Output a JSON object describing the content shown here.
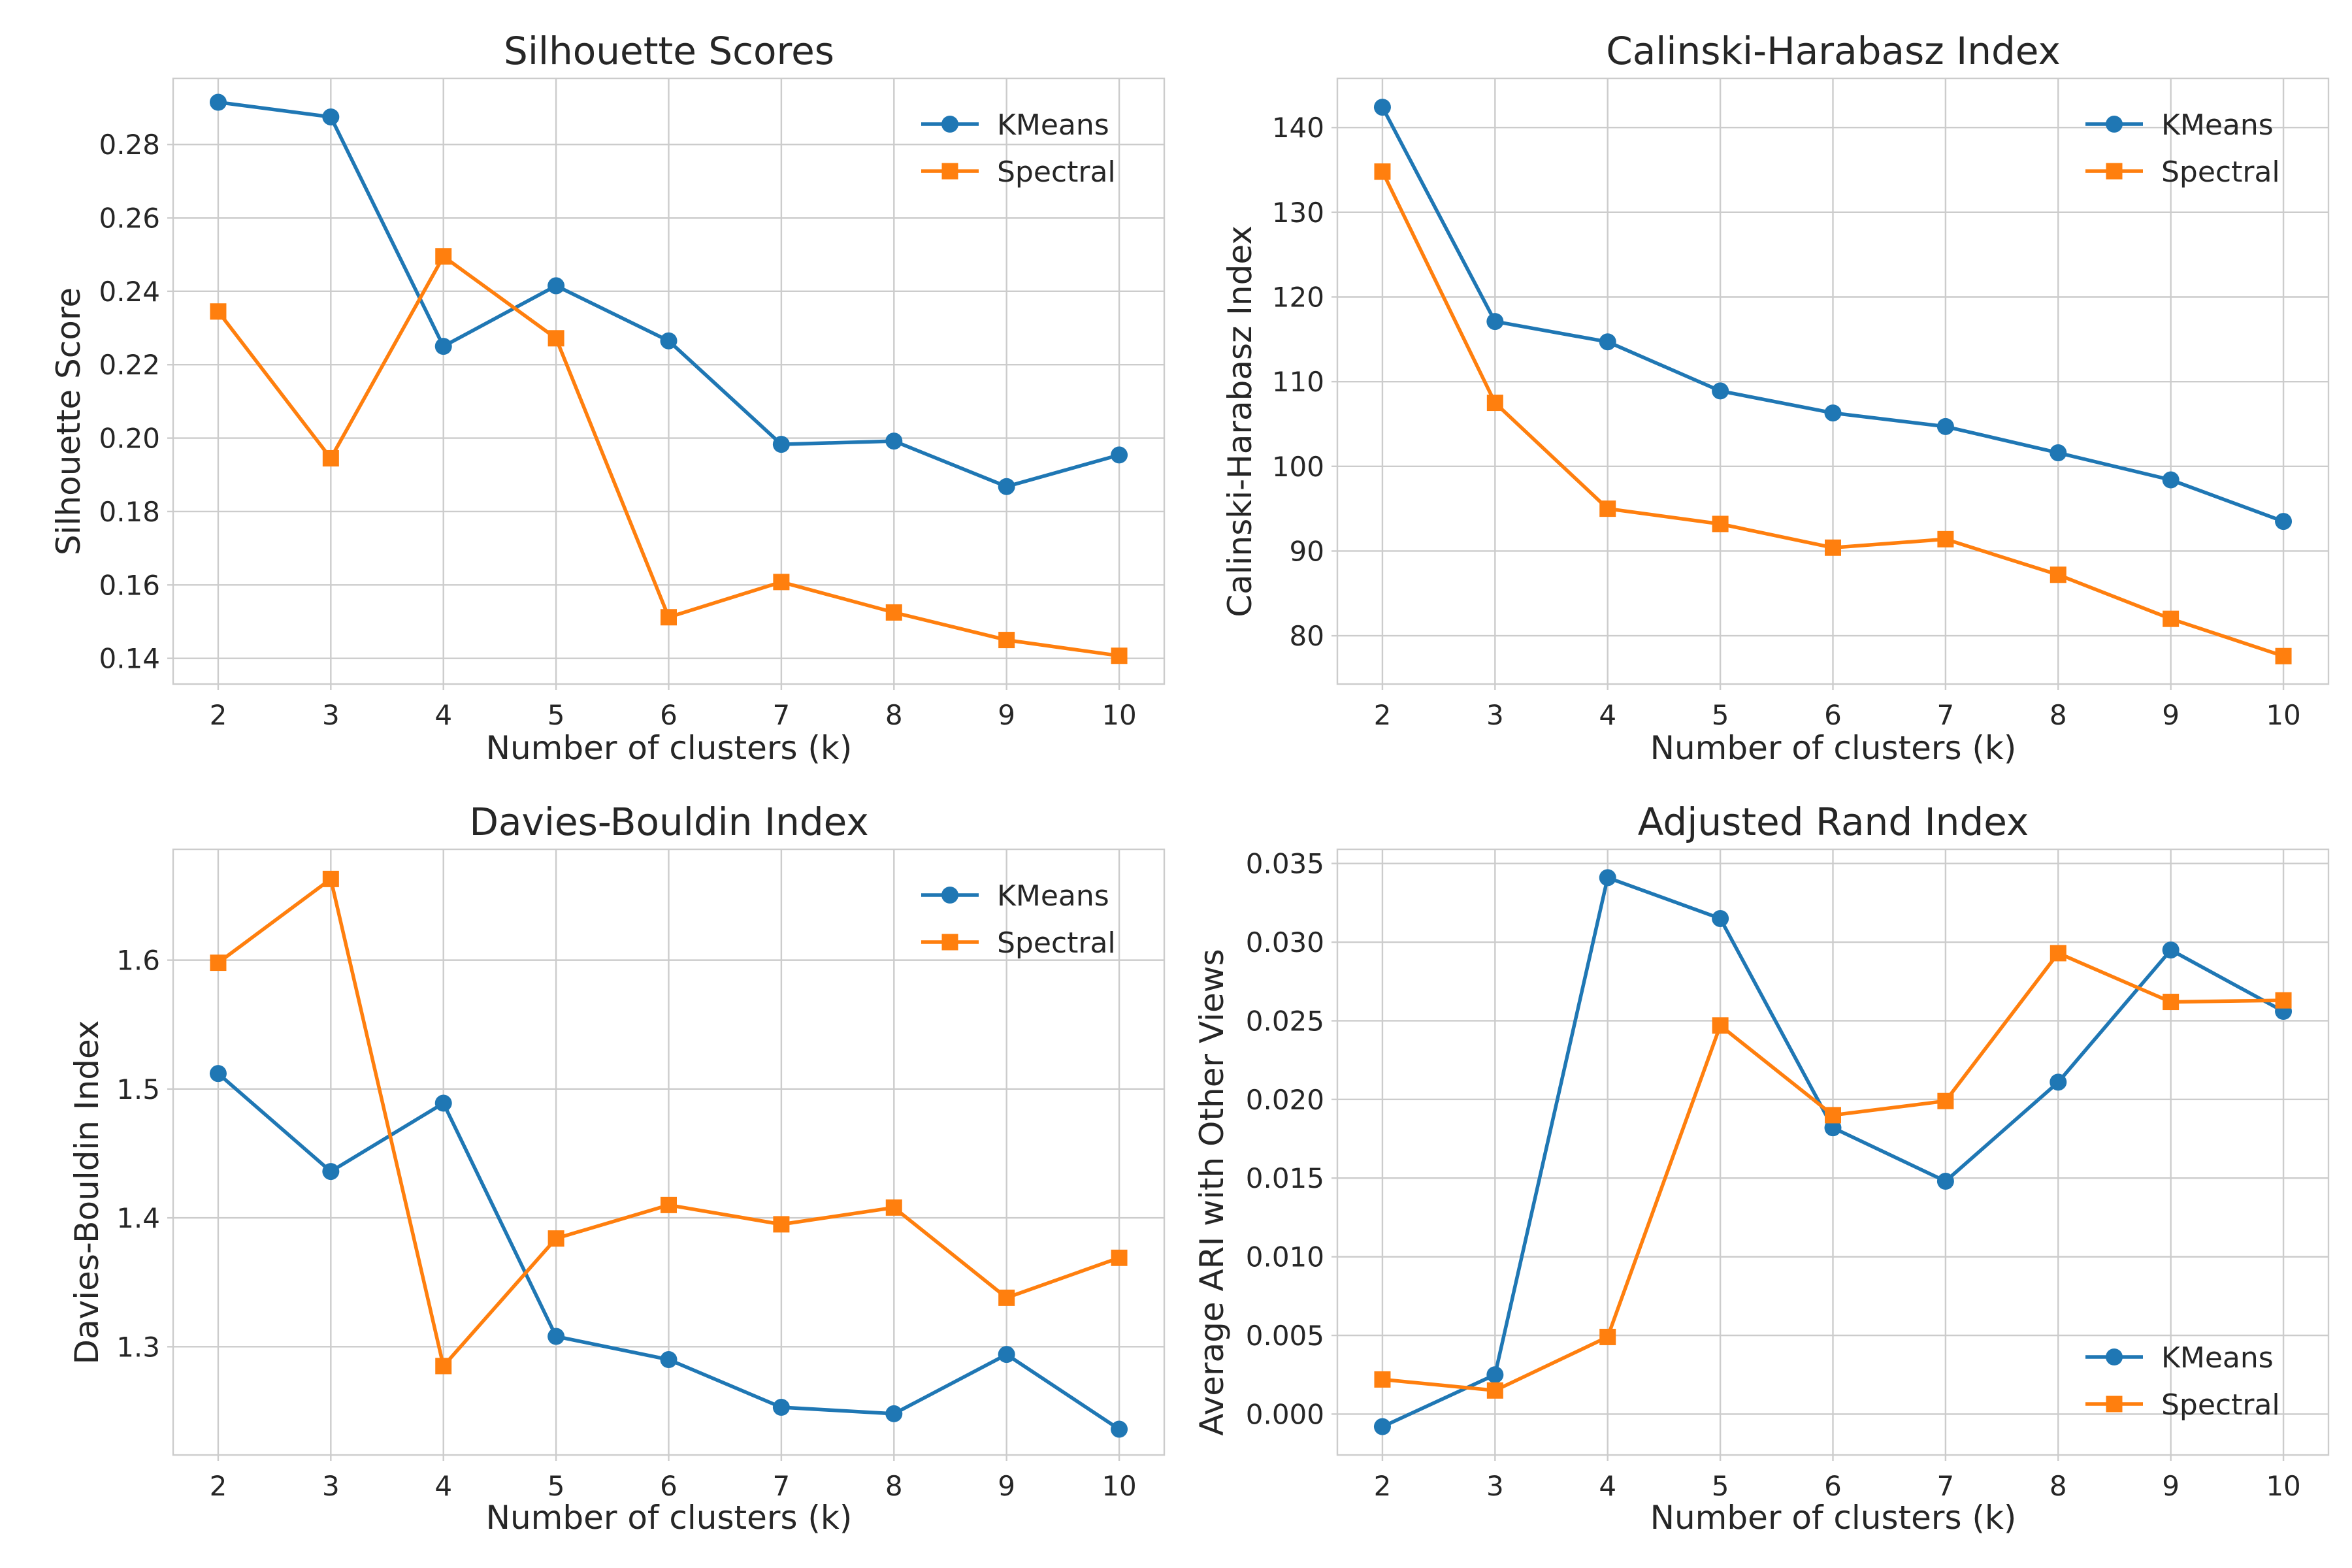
{
  "chart_data": [
    {
      "type": "line",
      "title": "Silhouette Scores",
      "xlabel": "Number of clusters (k)",
      "ylabel": "Silhouette Score",
      "x": [
        2,
        3,
        4,
        5,
        6,
        7,
        8,
        9,
        10
      ],
      "xticks": [
        "2",
        "3",
        "4",
        "5",
        "6",
        "7",
        "8",
        "9",
        "10"
      ],
      "xlim": [
        1.6,
        10.4
      ],
      "ylim": [
        0.133,
        0.298
      ],
      "yticks": [
        0.14,
        0.16,
        0.18,
        0.2,
        0.22,
        0.24,
        0.26,
        0.28
      ],
      "ytick_labels": [
        "0.14",
        "0.16",
        "0.18",
        "0.20",
        "0.22",
        "0.24",
        "0.26",
        "0.28"
      ],
      "grid": true,
      "legend": "top-right",
      "series": [
        {
          "name": "KMeans",
          "marker": "circle",
          "color": "#1f77b4",
          "values": [
            0.2915,
            0.2875,
            0.225,
            0.2415,
            0.2265,
            0.1983,
            0.1992,
            0.1868,
            0.1954
          ]
        },
        {
          "name": "Spectral",
          "marker": "square",
          "color": "#ff7f0e",
          "values": [
            0.2345,
            0.1945,
            0.2495,
            0.2272,
            0.1512,
            0.1608,
            0.1525,
            0.145,
            0.1407
          ]
        }
      ]
    },
    {
      "type": "line",
      "title": "Calinski-Harabasz Index",
      "xlabel": "Number of clusters (k)",
      "ylabel": "Calinski-Harabasz Index",
      "x": [
        2,
        3,
        4,
        5,
        6,
        7,
        8,
        9,
        10
      ],
      "xticks": [
        "2",
        "3",
        "4",
        "5",
        "6",
        "7",
        "8",
        "9",
        "10"
      ],
      "xlim": [
        1.6,
        10.4
      ],
      "ylim": [
        74.3,
        145.8
      ],
      "yticks": [
        80,
        90,
        100,
        110,
        120,
        130,
        140
      ],
      "ytick_labels": [
        "80",
        "90",
        "100",
        "110",
        "120",
        "130",
        "140"
      ],
      "grid": true,
      "legend": "top-right",
      "series": [
        {
          "name": "KMeans",
          "marker": "circle",
          "color": "#1f77b4",
          "values": [
            142.4,
            117.1,
            114.7,
            108.9,
            106.3,
            104.7,
            101.6,
            98.4,
            93.5
          ]
        },
        {
          "name": "Spectral",
          "marker": "square",
          "color": "#ff7f0e",
          "values": [
            134.8,
            107.5,
            95.0,
            93.2,
            90.4,
            91.4,
            87.2,
            82.0,
            77.6
          ]
        }
      ]
    },
    {
      "type": "line",
      "title": "Davies-Bouldin Index",
      "xlabel": "Number of clusters (k)",
      "ylabel": "Davies-Bouldin Index",
      "x": [
        2,
        3,
        4,
        5,
        6,
        7,
        8,
        9,
        10
      ],
      "xticks": [
        "2",
        "3",
        "4",
        "5",
        "6",
        "7",
        "8",
        "9",
        "10"
      ],
      "xlim": [
        1.6,
        10.4
      ],
      "ylim": [
        1.216,
        1.686
      ],
      "yticks": [
        1.3,
        1.4,
        1.5,
        1.6
      ],
      "ytick_labels": [
        "1.3",
        "1.4",
        "1.5",
        "1.6"
      ],
      "grid": true,
      "legend": "top-right",
      "series": [
        {
          "name": "KMeans",
          "marker": "circle",
          "color": "#1f77b4",
          "values": [
            1.512,
            1.436,
            1.489,
            1.308,
            1.29,
            1.253,
            1.248,
            1.294,
            1.236
          ]
        },
        {
          "name": "Spectral",
          "marker": "square",
          "color": "#ff7f0e",
          "values": [
            1.598,
            1.663,
            1.285,
            1.384,
            1.41,
            1.395,
            1.408,
            1.338,
            1.369
          ]
        }
      ]
    },
    {
      "type": "line",
      "title": "Adjusted Rand Index",
      "xlabel": "Number of clusters (k)",
      "ylabel": "Average ARI with Other Views",
      "x": [
        2,
        3,
        4,
        5,
        6,
        7,
        8,
        9,
        10
      ],
      "xticks": [
        "2",
        "3",
        "4",
        "5",
        "6",
        "7",
        "8",
        "9",
        "10"
      ],
      "xlim": [
        1.6,
        10.4
      ],
      "ylim": [
        -0.0026,
        0.0359
      ],
      "yticks": [
        0.0,
        0.005,
        0.01,
        0.015,
        0.02,
        0.025,
        0.03,
        0.035
      ],
      "ytick_labels": [
        "0.000",
        "0.005",
        "0.010",
        "0.015",
        "0.020",
        "0.025",
        "0.030",
        "0.035"
      ],
      "grid": true,
      "legend": "bottom-right",
      "series": [
        {
          "name": "KMeans",
          "marker": "circle",
          "color": "#1f77b4",
          "values": [
            -0.0008,
            0.0025,
            0.0341,
            0.0315,
            0.0182,
            0.0148,
            0.0211,
            0.0295,
            0.0256
          ]
        },
        {
          "name": "Spectral",
          "marker": "square",
          "color": "#ff7f0e",
          "values": [
            0.0022,
            0.0015,
            0.0049,
            0.0247,
            0.019,
            0.0199,
            0.0293,
            0.0262,
            0.0263
          ]
        }
      ]
    }
  ]
}
